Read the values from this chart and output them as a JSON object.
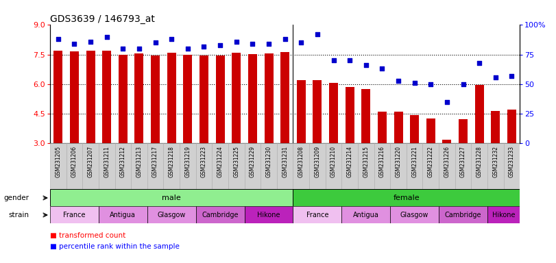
{
  "title": "GDS3639 / 146793_at",
  "samples": [
    "GSM231205",
    "GSM231206",
    "GSM231207",
    "GSM231211",
    "GSM231212",
    "GSM231213",
    "GSM231217",
    "GSM231218",
    "GSM231219",
    "GSM231223",
    "GSM231224",
    "GSM231225",
    "GSM231229",
    "GSM231230",
    "GSM231231",
    "GSM231208",
    "GSM231209",
    "GSM231210",
    "GSM231214",
    "GSM231215",
    "GSM231216",
    "GSM231220",
    "GSM231221",
    "GSM231222",
    "GSM231226",
    "GSM231227",
    "GSM231228",
    "GSM231232",
    "GSM231233"
  ],
  "bar_values": [
    7.7,
    7.65,
    7.7,
    7.7,
    7.5,
    7.55,
    7.47,
    7.58,
    7.5,
    7.47,
    7.47,
    7.58,
    7.52,
    7.55,
    7.63,
    6.2,
    6.22,
    6.08,
    5.85,
    5.75,
    4.6,
    4.62,
    4.42,
    4.25,
    3.2,
    4.22,
    5.95,
    4.65,
    4.72
  ],
  "percentile_values": [
    88,
    84,
    86,
    90,
    80,
    80,
    85,
    88,
    80,
    82,
    83,
    86,
    84,
    84,
    88,
    85,
    92,
    70,
    70,
    66,
    63,
    53,
    51,
    50,
    35,
    50,
    68,
    56,
    57
  ],
  "ylim_left": [
    3,
    9
  ],
  "ylim_right": [
    0,
    100
  ],
  "yticks_left": [
    3,
    4.5,
    6,
    7.5,
    9
  ],
  "yticks_right": [
    0,
    25,
    50,
    75,
    100
  ],
  "bar_color": "#cc0000",
  "dot_color": "#0000cc",
  "n_male": 15,
  "n_female": 14,
  "male_color": "#90ee90",
  "female_color": "#3dca3d",
  "strain_colors": [
    "#f0c0f0",
    "#e090e0",
    "#e090e0",
    "#cc66cc",
    "#bb22bb"
  ],
  "strain_labels": [
    "France",
    "Antigua",
    "Glasgow",
    "Cambridge",
    "Hikone"
  ],
  "male_strain_counts": [
    3,
    3,
    3,
    3,
    3
  ],
  "female_strain_counts": [
    3,
    3,
    3,
    3,
    2
  ],
  "legend_bar_label": "transformed count",
  "legend_dot_label": "percentile rank within the sample",
  "title_fontsize": 10
}
